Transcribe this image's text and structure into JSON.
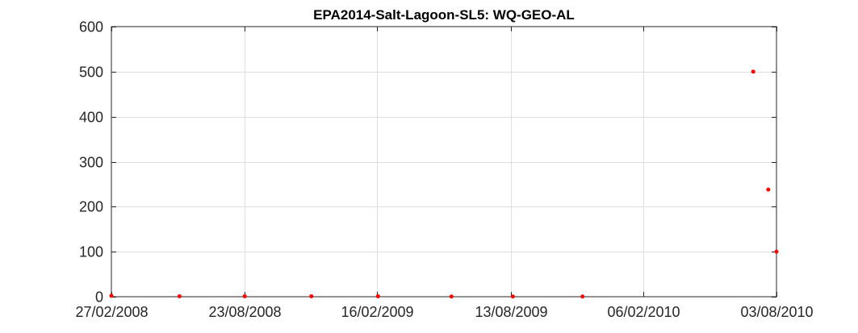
{
  "chart_data": {
    "type": "scatter",
    "title": "EPA2014-Salt-Lagoon-SL5: WQ-GEO-AL",
    "xlabel": "",
    "ylabel": "",
    "x_axis_type": "date",
    "xlim": [
      "2008-02-27",
      "2010-08-03"
    ],
    "ylim": [
      0,
      600
    ],
    "x_ticks": [
      "2008-02-27",
      "2008-08-23",
      "2009-02-16",
      "2009-08-13",
      "2010-02-06",
      "2010-08-03"
    ],
    "x_tick_labels": [
      "27/02/2008",
      "23/08/2008",
      "16/02/2009",
      "13/08/2009",
      "06/02/2010",
      "03/08/2010"
    ],
    "y_ticks": [
      0,
      100,
      200,
      300,
      400,
      500,
      600
    ],
    "y_tick_labels": [
      "0",
      "100",
      "200",
      "300",
      "400",
      "500",
      "600"
    ],
    "grid": true,
    "marker_color": "#ff0000",
    "axis_color": "#262626",
    "grid_color": "#dfdfdf",
    "series": [
      {
        "points": [
          {
            "x": "2008-02-27",
            "y": 2
          },
          {
            "x": "2008-05-28",
            "y": 1
          },
          {
            "x": "2008-08-23",
            "y": 1
          },
          {
            "x": "2008-11-20",
            "y": 1
          },
          {
            "x": "2009-02-17",
            "y": 1
          },
          {
            "x": "2009-05-26",
            "y": 0.5
          },
          {
            "x": "2009-08-16",
            "y": 0.5
          },
          {
            "x": "2009-11-17",
            "y": 0.5
          },
          {
            "x": "2010-07-03",
            "y": 500
          },
          {
            "x": "2010-07-23",
            "y": 238
          },
          {
            "x": "2010-08-03",
            "y": 100
          }
        ]
      }
    ]
  }
}
